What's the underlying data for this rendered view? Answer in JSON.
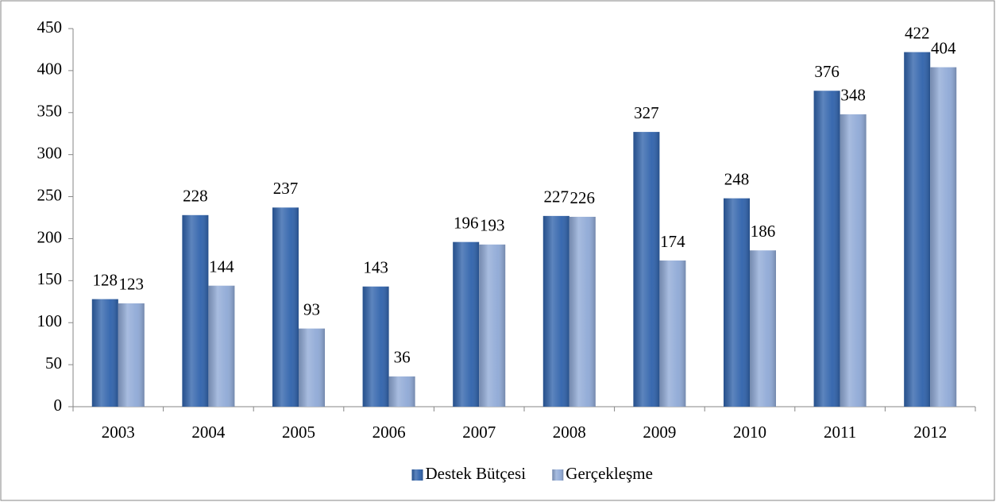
{
  "chart_data": {
    "type": "bar",
    "categories": [
      "2003",
      "2004",
      "2005",
      "2006",
      "2007",
      "2008",
      "2009",
      "2010",
      "2011",
      "2012"
    ],
    "series": [
      {
        "name": "Destek Bütçesi",
        "color": "#2f62ab",
        "values": [
          128,
          228,
          237,
          143,
          196,
          227,
          327,
          248,
          376,
          422
        ]
      },
      {
        "name": "Gerçekleşme",
        "color": "#8fa9d6",
        "values": [
          123,
          144,
          93,
          36,
          193,
          226,
          174,
          186,
          348,
          404
        ]
      }
    ],
    "ylim": [
      0,
      450
    ],
    "yticks": [
      0,
      50,
      100,
      150,
      200,
      250,
      300,
      350,
      400,
      450
    ],
    "grid": false,
    "legend": "bottom"
  }
}
